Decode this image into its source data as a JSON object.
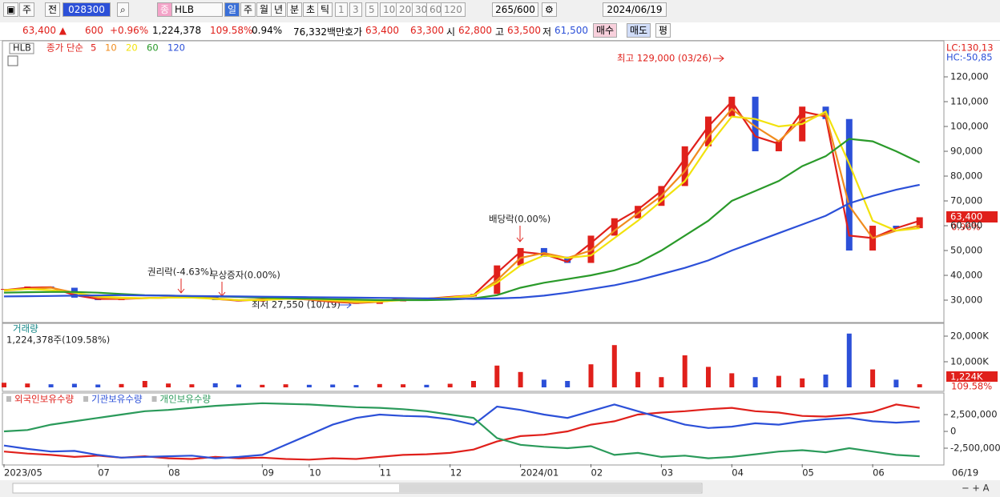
{
  "toolbar": {
    "market": "주",
    "prev": "전",
    "code": "028300",
    "kind": "종",
    "name": "HLB",
    "periods": [
      "일",
      "주",
      "월",
      "년",
      "분",
      "초",
      "틱"
    ],
    "intervals": [
      "1",
      "3",
      "5",
      "10",
      "20",
      "30",
      "60",
      "120"
    ],
    "count": "265/600",
    "date": "2024/06/19"
  },
  "quote": {
    "price": "63,400 ▲",
    "change": "600",
    "change_pct": "+0.96%",
    "volume": "1,224,378",
    "volume_ratio": "109.58%",
    "turnover": "0.94%",
    "amount": "76,332백만",
    "ask_label": "호가",
    "ask": "63,400",
    "bid": "63,300",
    "open_label": "시",
    "open": "62,800",
    "high_label": "고",
    "high": "63,500",
    "low_label": "저",
    "low": "61,500",
    "buy": "매수",
    "sell": "매도",
    "avg": "평"
  },
  "chart_data": [
    {
      "type": "line",
      "symbol": "HLB",
      "label": "종가 단순",
      "close": [
        34500,
        35500,
        35000,
        31000,
        30000,
        30500,
        31000,
        31000,
        31500,
        30000,
        29500,
        30500,
        31000,
        30000,
        29000,
        28500,
        29500,
        31000,
        30500,
        31500,
        32500,
        44000,
        51000,
        47500,
        45000,
        56000,
        63000,
        68000,
        76000,
        92000,
        104000,
        112000,
        90000,
        94000,
        108000,
        103000,
        50000,
        60000,
        59000,
        63400
      ],
      "series": [
        {
          "name": "5",
          "color": "#e0201b",
          "values": [
            34000,
            35000,
            35200,
            32000,
            30500,
            30500,
            30800,
            31000,
            31300,
            30500,
            29800,
            30300,
            30800,
            30200,
            29300,
            28800,
            29300,
            30700,
            30600,
            31300,
            32000,
            41000,
            49500,
            48500,
            45500,
            53000,
            61000,
            66500,
            74000,
            87000,
            100000,
            110000,
            96000,
            93000,
            106000,
            104000,
            56000,
            55000,
            59000,
            62000
          ]
        },
        {
          "name": "10",
          "color": "#f08c1e",
          "values": [
            33800,
            34500,
            35000,
            33000,
            31000,
            30600,
            30800,
            31000,
            31200,
            30700,
            30000,
            30200,
            30600,
            30300,
            29600,
            29000,
            29300,
            30300,
            30600,
            31000,
            31600,
            38000,
            47000,
            49000,
            47000,
            50000,
            58000,
            65000,
            72000,
            82000,
            96000,
            107000,
            100000,
            94000,
            103000,
            105000,
            68000,
            55000,
            58000,
            60000
          ]
        },
        {
          "name": "20",
          "color": "#f2e20c",
          "values": [
            34000,
            34500,
            34000,
            33000,
            31500,
            31000,
            30800,
            31000,
            31000,
            30500,
            30000,
            30000,
            30500,
            30500,
            30000,
            29500,
            29500,
            30000,
            30500,
            31000,
            32000,
            37000,
            44000,
            48000,
            47000,
            48000,
            55000,
            62000,
            70000,
            78000,
            92000,
            104000,
            103000,
            100000,
            101000,
            106000,
            85000,
            62000,
            58000,
            59000
          ]
        },
        {
          "name": "60",
          "color": "#2a9a2a",
          "values": [
            33000,
            33200,
            33300,
            33300,
            33000,
            32500,
            32000,
            31800,
            31600,
            31500,
            31300,
            31000,
            30800,
            30600,
            30400,
            30200,
            30000,
            30000,
            30000,
            30200,
            30700,
            32000,
            35000,
            37000,
            38500,
            40000,
            42000,
            45000,
            50000,
            56000,
            62000,
            70000,
            74000,
            78000,
            84000,
            88000,
            95000,
            94000,
            90000,
            85500
          ]
        },
        {
          "name": "120",
          "color": "#2c50d8",
          "values": [
            31500,
            31600,
            31700,
            31800,
            31900,
            32000,
            31900,
            31800,
            31700,
            31600,
            31500,
            31400,
            31300,
            31200,
            31100,
            31000,
            30900,
            30800,
            30700,
            30600,
            30500,
            30700,
            31000,
            31800,
            33000,
            34500,
            36000,
            38000,
            40500,
            43000,
            46000,
            50000,
            53500,
            57000,
            60500,
            64000,
            69000,
            72000,
            74500,
            76500
          ]
        }
      ],
      "ylim": [
        21300,
        134200
      ],
      "yticks": [
        {
          "value": 30000,
          "label": "30,000"
        },
        {
          "value": 40000,
          "label": "40,000"
        },
        {
          "value": 50000,
          "label": "50,000"
        },
        {
          "value": 60000,
          "label": "60,000"
        },
        {
          "value": 70000,
          "label": "70,000"
        },
        {
          "value": 80000,
          "label": "80,000"
        },
        {
          "value": 90000,
          "label": "90,000"
        },
        {
          "value": 100000,
          "label": "100,000"
        },
        {
          "value": 110000,
          "label": "110,000"
        },
        {
          "value": 120000,
          "label": "120,000"
        }
      ],
      "annotations": {
        "high": "최고 129,000 (03/26)",
        "low": "최저 27,550 (10/19)",
        "rights": "권리락(-4.63%)",
        "bonus": "무상증자(0.00%)",
        "dividend": "배당락(0.00%)",
        "lc": "LC:130,13",
        "hc": "HC:-50,85",
        "last_price": "63,400",
        "last_change": "0.96%"
      }
    },
    {
      "type": "bar",
      "title": "거래량",
      "subtitle": "1,224,378주(109.58%)",
      "values": [
        1800,
        1500,
        1200,
        1400,
        1100,
        1300,
        2500,
        1500,
        1200,
        1600,
        1100,
        1000,
        1200,
        1000,
        1100,
        900,
        1300,
        1200,
        1000,
        1400,
        2500,
        8500,
        6000,
        3000,
        2500,
        9000,
        16500,
        6000,
        4000,
        12500,
        8000,
        5500,
        4000,
        4500,
        3500,
        5000,
        21000,
        7000,
        3000,
        1224
      ],
      "ylim": [
        0,
        25000
      ],
      "yticks": [
        {
          "value": 10000,
          "label": "10,000K"
        },
        {
          "value": 20000,
          "label": "20,000K"
        }
      ],
      "annotations": {
        "last_volume": "1,224K",
        "last_ratio": "109.58%"
      }
    },
    {
      "type": "line",
      "series": [
        {
          "name": "외국인보유수량",
          "color": "#e0201b",
          "values": [
            -3000000,
            -3300000,
            -3500000,
            -3800000,
            -3600000,
            -3900000,
            -3700000,
            -4000000,
            -4100000,
            -3800000,
            -4000000,
            -3900000,
            -4100000,
            -4200000,
            -4000000,
            -4100000,
            -3800000,
            -3500000,
            -3400000,
            -3200000,
            -2700000,
            -1500000,
            -700000,
            -500000,
            0,
            1000000,
            1500000,
            2500000,
            2800000,
            3000000,
            3300000,
            3500000,
            3000000,
            2800000,
            2300000,
            2200000,
            2500000,
            2900000,
            4000000,
            3500000
          ]
        },
        {
          "name": "기관보유수량",
          "color": "#2c50d8",
          "values": [
            -2100000,
            -2600000,
            -3000000,
            -2900000,
            -3500000,
            -3900000,
            -3800000,
            -3700000,
            -3600000,
            -4000000,
            -3800000,
            -3500000,
            -2000000,
            -500000,
            1000000,
            2000000,
            2500000,
            2300000,
            2200000,
            1800000,
            1000000,
            3700000,
            3200000,
            2500000,
            2000000,
            3000000,
            4000000,
            3000000,
            2000000,
            1000000,
            500000,
            700000,
            1200000,
            1000000,
            1500000,
            1800000,
            2000000,
            1500000,
            1300000,
            1500000
          ]
        },
        {
          "name": "개인보유수량",
          "color": "#2a9a5a",
          "values": [
            0,
            200000,
            1000000,
            1500000,
            2000000,
            2500000,
            3000000,
            3200000,
            3500000,
            3800000,
            4000000,
            4200000,
            4100000,
            4000000,
            3800000,
            3600000,
            3500000,
            3300000,
            3000000,
            2500000,
            2000000,
            -1000000,
            -2000000,
            -2300000,
            -2500000,
            -2200000,
            -3500000,
            -3200000,
            -3800000,
            -3600000,
            -4000000,
            -3800000,
            -3400000,
            -3000000,
            -2800000,
            -3100000,
            -2500000,
            -3000000,
            -3500000,
            -3700000
          ]
        }
      ],
      "ylim": [
        -4880000,
        5600000
      ],
      "yticks": [
        {
          "value": -2500000,
          "label": "-2,500,000"
        },
        0,
        {
          "value": 2500000,
          "label": "2,500,000"
        }
      ],
      "categories": [
        "2023/05",
        null,
        null,
        null,
        "07",
        null,
        null,
        "08",
        null,
        null,
        null,
        "09",
        null,
        "10",
        null,
        null,
        "11",
        null,
        null,
        "12",
        null,
        null,
        "2024/01",
        null,
        null,
        "02",
        null,
        null,
        "03",
        null,
        null,
        "04",
        null,
        null,
        "05",
        null,
        null,
        "06",
        null,
        null
      ],
      "cursor_label": "06/19"
    }
  ]
}
